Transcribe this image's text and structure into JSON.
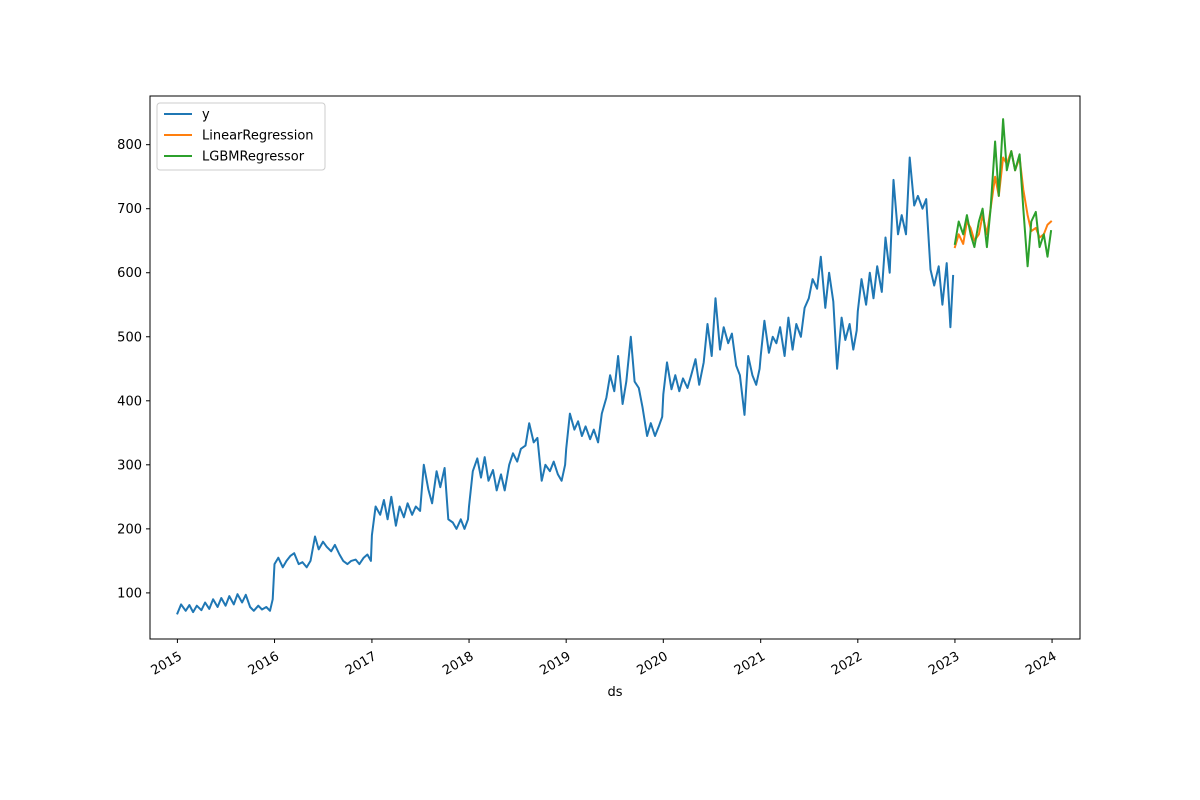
{
  "chart_data": {
    "type": "line",
    "title": "",
    "xlabel": "ds",
    "ylabel": "",
    "xlim": [
      "2014-09-20",
      "2024-04-15"
    ],
    "ylim": [
      28,
      876
    ],
    "x_ticks": [
      "2015",
      "2016",
      "2017",
      "2018",
      "2019",
      "2020",
      "2021",
      "2022",
      "2023",
      "2024"
    ],
    "y_ticks": [
      100,
      200,
      300,
      400,
      500,
      600,
      700,
      800
    ],
    "grid": false,
    "legend": {
      "location": "upper-left",
      "entries": [
        "y",
        "LinearRegression",
        "LGBMRegressor"
      ]
    },
    "series": [
      {
        "name": "y",
        "color": "#1f77b4",
        "points": [
          [
            "2015-01-01",
            68
          ],
          [
            "2015-01-15",
            82
          ],
          [
            "2015-02-01",
            72
          ],
          [
            "2015-02-15",
            81
          ],
          [
            "2015-03-01",
            70
          ],
          [
            "2015-03-15",
            80
          ],
          [
            "2015-04-01",
            73
          ],
          [
            "2015-04-15",
            85
          ],
          [
            "2015-05-01",
            75
          ],
          [
            "2015-05-15",
            90
          ],
          [
            "2015-06-01",
            78
          ],
          [
            "2015-06-15",
            92
          ],
          [
            "2015-07-01",
            80
          ],
          [
            "2015-07-15",
            95
          ],
          [
            "2015-08-01",
            82
          ],
          [
            "2015-08-15",
            98
          ],
          [
            "2015-09-01",
            85
          ],
          [
            "2015-09-15",
            97
          ],
          [
            "2015-10-01",
            78
          ],
          [
            "2015-10-15",
            72
          ],
          [
            "2015-11-01",
            80
          ],
          [
            "2015-11-15",
            74
          ],
          [
            "2015-12-01",
            78
          ],
          [
            "2015-12-15",
            72
          ],
          [
            "2015-12-25",
            90
          ],
          [
            "2016-01-01",
            145
          ],
          [
            "2016-01-15",
            155
          ],
          [
            "2016-02-01",
            140
          ],
          [
            "2016-02-15",
            150
          ],
          [
            "2016-03-01",
            158
          ],
          [
            "2016-03-15",
            162
          ],
          [
            "2016-04-01",
            145
          ],
          [
            "2016-04-15",
            148
          ],
          [
            "2016-05-01",
            140
          ],
          [
            "2016-05-15",
            150
          ],
          [
            "2016-06-01",
            188
          ],
          [
            "2016-06-15",
            168
          ],
          [
            "2016-07-01",
            180
          ],
          [
            "2016-07-15",
            172
          ],
          [
            "2016-08-01",
            165
          ],
          [
            "2016-08-15",
            175
          ],
          [
            "2016-09-01",
            160
          ],
          [
            "2016-09-15",
            150
          ],
          [
            "2016-10-01",
            145
          ],
          [
            "2016-10-15",
            150
          ],
          [
            "2016-11-01",
            152
          ],
          [
            "2016-11-15",
            145
          ],
          [
            "2016-12-01",
            155
          ],
          [
            "2016-12-15",
            160
          ],
          [
            "2016-12-28",
            150
          ],
          [
            "2017-01-01",
            190
          ],
          [
            "2017-01-15",
            235
          ],
          [
            "2017-02-01",
            222
          ],
          [
            "2017-02-15",
            245
          ],
          [
            "2017-03-01",
            215
          ],
          [
            "2017-03-15",
            250
          ],
          [
            "2017-04-01",
            205
          ],
          [
            "2017-04-15",
            235
          ],
          [
            "2017-05-01",
            218
          ],
          [
            "2017-05-15",
            240
          ],
          [
            "2017-06-01",
            222
          ],
          [
            "2017-06-15",
            235
          ],
          [
            "2017-07-01",
            228
          ],
          [
            "2017-07-15",
            300
          ],
          [
            "2017-08-01",
            262
          ],
          [
            "2017-08-15",
            240
          ],
          [
            "2017-09-01",
            290
          ],
          [
            "2017-09-15",
            265
          ],
          [
            "2017-10-01",
            295
          ],
          [
            "2017-10-15",
            215
          ],
          [
            "2017-11-01",
            210
          ],
          [
            "2017-11-15",
            200
          ],
          [
            "2017-12-01",
            215
          ],
          [
            "2017-12-15",
            200
          ],
          [
            "2017-12-28",
            215
          ],
          [
            "2018-01-01",
            235
          ],
          [
            "2018-01-15",
            290
          ],
          [
            "2018-02-01",
            310
          ],
          [
            "2018-02-15",
            280
          ],
          [
            "2018-03-01",
            312
          ],
          [
            "2018-03-15",
            275
          ],
          [
            "2018-04-01",
            292
          ],
          [
            "2018-04-15",
            260
          ],
          [
            "2018-05-01",
            285
          ],
          [
            "2018-05-15",
            260
          ],
          [
            "2018-06-01",
            300
          ],
          [
            "2018-06-15",
            318
          ],
          [
            "2018-07-01",
            305
          ],
          [
            "2018-07-15",
            325
          ],
          [
            "2018-08-01",
            330
          ],
          [
            "2018-08-15",
            365
          ],
          [
            "2018-09-01",
            335
          ],
          [
            "2018-09-15",
            342
          ],
          [
            "2018-10-01",
            275
          ],
          [
            "2018-10-15",
            300
          ],
          [
            "2018-11-01",
            290
          ],
          [
            "2018-11-15",
            305
          ],
          [
            "2018-12-01",
            285
          ],
          [
            "2018-12-15",
            275
          ],
          [
            "2018-12-28",
            300
          ],
          [
            "2019-01-01",
            325
          ],
          [
            "2019-01-15",
            380
          ],
          [
            "2019-02-01",
            355
          ],
          [
            "2019-02-15",
            368
          ],
          [
            "2019-03-01",
            345
          ],
          [
            "2019-03-15",
            360
          ],
          [
            "2019-04-01",
            340
          ],
          [
            "2019-04-15",
            355
          ],
          [
            "2019-05-01",
            335
          ],
          [
            "2019-05-15",
            380
          ],
          [
            "2019-06-01",
            405
          ],
          [
            "2019-06-15",
            440
          ],
          [
            "2019-07-01",
            415
          ],
          [
            "2019-07-15",
            470
          ],
          [
            "2019-08-01",
            395
          ],
          [
            "2019-08-15",
            430
          ],
          [
            "2019-09-01",
            500
          ],
          [
            "2019-09-15",
            430
          ],
          [
            "2019-10-01",
            420
          ],
          [
            "2019-10-15",
            390
          ],
          [
            "2019-11-01",
            345
          ],
          [
            "2019-11-15",
            365
          ],
          [
            "2019-12-01",
            345
          ],
          [
            "2019-12-15",
            360
          ],
          [
            "2019-12-28",
            375
          ],
          [
            "2020-01-01",
            410
          ],
          [
            "2020-01-15",
            460
          ],
          [
            "2020-02-01",
            418
          ],
          [
            "2020-02-15",
            440
          ],
          [
            "2020-03-01",
            415
          ],
          [
            "2020-03-15",
            435
          ],
          [
            "2020-04-01",
            420
          ],
          [
            "2020-04-15",
            440
          ],
          [
            "2020-05-01",
            465
          ],
          [
            "2020-05-15",
            425
          ],
          [
            "2020-06-01",
            460
          ],
          [
            "2020-06-15",
            520
          ],
          [
            "2020-07-01",
            470
          ],
          [
            "2020-07-15",
            560
          ],
          [
            "2020-08-01",
            480
          ],
          [
            "2020-08-15",
            515
          ],
          [
            "2020-09-01",
            490
          ],
          [
            "2020-09-15",
            505
          ],
          [
            "2020-10-01",
            455
          ],
          [
            "2020-10-15",
            440
          ],
          [
            "2020-11-01",
            378
          ],
          [
            "2020-11-15",
            470
          ],
          [
            "2020-12-01",
            440
          ],
          [
            "2020-12-15",
            425
          ],
          [
            "2020-12-28",
            450
          ],
          [
            "2021-01-01",
            470
          ],
          [
            "2021-01-15",
            525
          ],
          [
            "2021-02-01",
            475
          ],
          [
            "2021-02-15",
            500
          ],
          [
            "2021-03-01",
            490
          ],
          [
            "2021-03-15",
            515
          ],
          [
            "2021-04-01",
            470
          ],
          [
            "2021-04-15",
            530
          ],
          [
            "2021-05-01",
            480
          ],
          [
            "2021-05-15",
            520
          ],
          [
            "2021-06-01",
            500
          ],
          [
            "2021-06-15",
            545
          ],
          [
            "2021-07-01",
            560
          ],
          [
            "2021-07-15",
            590
          ],
          [
            "2021-08-01",
            575
          ],
          [
            "2021-08-15",
            625
          ],
          [
            "2021-09-01",
            545
          ],
          [
            "2021-09-15",
            600
          ],
          [
            "2021-10-01",
            555
          ],
          [
            "2021-10-15",
            450
          ],
          [
            "2021-11-01",
            530
          ],
          [
            "2021-11-15",
            495
          ],
          [
            "2021-12-01",
            520
          ],
          [
            "2021-12-15",
            480
          ],
          [
            "2021-12-28",
            510
          ],
          [
            "2022-01-01",
            540
          ],
          [
            "2022-01-15",
            590
          ],
          [
            "2022-02-01",
            550
          ],
          [
            "2022-02-15",
            600
          ],
          [
            "2022-03-01",
            560
          ],
          [
            "2022-03-15",
            610
          ],
          [
            "2022-04-01",
            570
          ],
          [
            "2022-04-15",
            655
          ],
          [
            "2022-05-01",
            600
          ],
          [
            "2022-05-15",
            745
          ],
          [
            "2022-06-01",
            660
          ],
          [
            "2022-06-15",
            690
          ],
          [
            "2022-07-01",
            660
          ],
          [
            "2022-07-15",
            780
          ],
          [
            "2022-08-01",
            705
          ],
          [
            "2022-08-15",
            720
          ],
          [
            "2022-09-01",
            700
          ],
          [
            "2022-09-15",
            715
          ],
          [
            "2022-10-01",
            605
          ],
          [
            "2022-10-15",
            580
          ],
          [
            "2022-11-01",
            610
          ],
          [
            "2022-11-15",
            550
          ],
          [
            "2022-12-01",
            615
          ],
          [
            "2022-12-15",
            515
          ],
          [
            "2022-12-25",
            595
          ]
        ]
      },
      {
        "name": "LinearRegression",
        "color": "#ff7f0e",
        "points": [
          [
            "2023-01-01",
            640
          ],
          [
            "2023-01-15",
            660
          ],
          [
            "2023-02-01",
            645
          ],
          [
            "2023-02-15",
            680
          ],
          [
            "2023-03-01",
            670
          ],
          [
            "2023-03-15",
            650
          ],
          [
            "2023-04-01",
            660
          ],
          [
            "2023-04-15",
            690
          ],
          [
            "2023-05-01",
            660
          ],
          [
            "2023-05-15",
            700
          ],
          [
            "2023-06-01",
            750
          ],
          [
            "2023-06-15",
            720
          ],
          [
            "2023-07-01",
            780
          ],
          [
            "2023-07-15",
            770
          ],
          [
            "2023-08-01",
            790
          ],
          [
            "2023-08-15",
            760
          ],
          [
            "2023-09-01",
            780
          ],
          [
            "2023-09-15",
            730
          ],
          [
            "2023-10-01",
            690
          ],
          [
            "2023-10-15",
            665
          ],
          [
            "2023-11-01",
            670
          ],
          [
            "2023-11-15",
            655
          ],
          [
            "2023-12-01",
            660
          ],
          [
            "2023-12-15",
            675
          ],
          [
            "2023-12-28",
            680
          ]
        ]
      },
      {
        "name": "LGBMRegressor",
        "color": "#2ca02c",
        "points": [
          [
            "2023-01-01",
            645
          ],
          [
            "2023-01-15",
            680
          ],
          [
            "2023-02-01",
            660
          ],
          [
            "2023-02-15",
            690
          ],
          [
            "2023-03-01",
            660
          ],
          [
            "2023-03-15",
            640
          ],
          [
            "2023-04-01",
            680
          ],
          [
            "2023-04-15",
            700
          ],
          [
            "2023-05-01",
            640
          ],
          [
            "2023-05-15",
            700
          ],
          [
            "2023-06-01",
            805
          ],
          [
            "2023-06-15",
            720
          ],
          [
            "2023-07-01",
            840
          ],
          [
            "2023-07-15",
            760
          ],
          [
            "2023-08-01",
            790
          ],
          [
            "2023-08-15",
            760
          ],
          [
            "2023-09-01",
            785
          ],
          [
            "2023-09-15",
            700
          ],
          [
            "2023-10-01",
            610
          ],
          [
            "2023-10-15",
            680
          ],
          [
            "2023-11-01",
            695
          ],
          [
            "2023-11-15",
            640
          ],
          [
            "2023-12-01",
            660
          ],
          [
            "2023-12-15",
            625
          ],
          [
            "2023-12-28",
            665
          ]
        ]
      }
    ]
  }
}
